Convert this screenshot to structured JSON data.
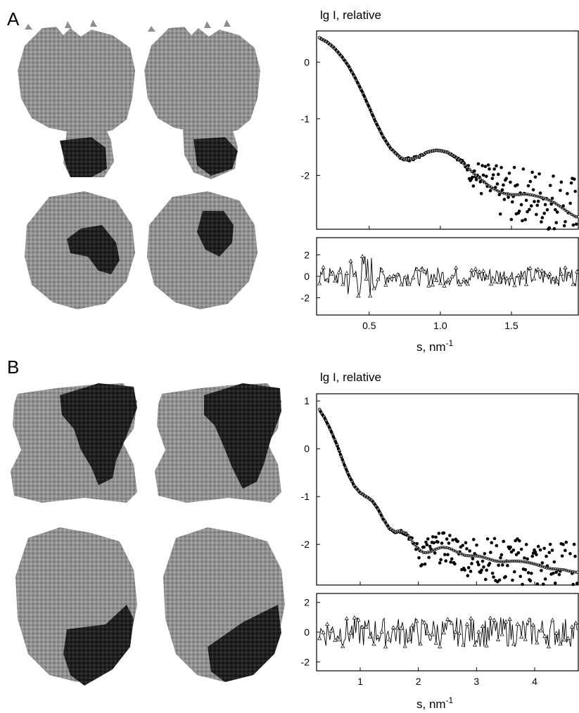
{
  "panels": [
    {
      "letter": "A",
      "ylabel": "lg I, relative",
      "xlabel": "s, nm",
      "xlabel_sup": "-1"
    },
    {
      "letter": "B",
      "ylabel": "lg I, relative",
      "xlabel": "s, nm",
      "xlabel_sup": "-1"
    }
  ],
  "colors": {
    "protein": "#8c8c8c",
    "subunit": "#1e1e1e",
    "frame": "#000000"
  },
  "chart_data": [
    {
      "type": "scatter",
      "panel": "A",
      "ylabel": "lg I, relative",
      "xlabel": "s, nm-1",
      "xlim": [
        0.13,
        1.97
      ],
      "ylim": [
        -2.95,
        0.55
      ],
      "xticks": [
        "0.5",
        "1.0",
        "1.5"
      ],
      "yticks": [
        "0",
        "-1",
        "-2"
      ],
      "grid": false,
      "series": [],
      "experimental_points": [
        [
          0.15,
          0.43
        ],
        [
          0.2,
          0.36
        ],
        [
          0.25,
          0.26
        ],
        [
          0.3,
          0.12
        ],
        [
          0.35,
          -0.05
        ],
        [
          0.4,
          -0.27
        ],
        [
          0.45,
          -0.52
        ],
        [
          0.5,
          -0.8
        ],
        [
          0.55,
          -1.08
        ],
        [
          0.6,
          -1.33
        ],
        [
          0.65,
          -1.52
        ],
        [
          0.7,
          -1.65
        ],
        [
          0.75,
          -1.72
        ],
        [
          0.8,
          -1.71
        ],
        [
          0.85,
          -1.67
        ],
        [
          0.9,
          -1.6
        ],
        [
          0.95,
          -1.56
        ],
        [
          1.0,
          -1.56
        ],
        [
          1.05,
          -1.59
        ],
        [
          1.1,
          -1.66
        ],
        [
          1.15,
          -1.76
        ],
        [
          1.2,
          -1.88
        ],
        [
          1.25,
          -2.0
        ],
        [
          1.3,
          -2.1
        ],
        [
          1.35,
          -2.2
        ],
        [
          1.4,
          -2.27
        ],
        [
          1.45,
          -2.32
        ],
        [
          1.5,
          -2.34
        ],
        [
          1.55,
          -2.34
        ],
        [
          1.6,
          -2.33
        ],
        [
          1.65,
          -2.35
        ],
        [
          1.7,
          -2.38
        ],
        [
          1.75,
          -2.42
        ],
        [
          1.8,
          -2.48
        ],
        [
          1.85,
          -2.56
        ],
        [
          1.9,
          -2.65
        ],
        [
          1.95,
          -2.73
        ]
      ],
      "residuals": {
        "ylim": [
          -3.6,
          3.6
        ],
        "yticks": [
          "2",
          "0",
          "-2"
        ],
        "xticks": [
          "0.5",
          "1.0",
          "1.5"
        ]
      }
    },
    {
      "type": "scatter",
      "panel": "B",
      "ylabel": "lg I, relative",
      "xlabel": "s, nm-1",
      "xlim": [
        0.25,
        4.75
      ],
      "ylim": [
        -2.85,
        1.15
      ],
      "xticks": [
        "1",
        "2",
        "3",
        "4"
      ],
      "yticks": [
        "1",
        "0",
        "-1",
        "-2"
      ],
      "grid": false,
      "series": [],
      "experimental_points": [
        [
          0.3,
          0.82
        ],
        [
          0.4,
          0.62
        ],
        [
          0.5,
          0.37
        ],
        [
          0.6,
          0.08
        ],
        [
          0.7,
          -0.25
        ],
        [
          0.8,
          -0.55
        ],
        [
          0.9,
          -0.78
        ],
        [
          1.0,
          -0.92
        ],
        [
          1.1,
          -1.0
        ],
        [
          1.2,
          -1.08
        ],
        [
          1.3,
          -1.25
        ],
        [
          1.4,
          -1.48
        ],
        [
          1.5,
          -1.66
        ],
        [
          1.6,
          -1.73
        ],
        [
          1.7,
          -1.72
        ],
        [
          1.8,
          -1.78
        ],
        [
          1.9,
          -1.95
        ],
        [
          2.0,
          -2.1
        ],
        [
          2.1,
          -2.18
        ],
        [
          2.2,
          -2.16
        ],
        [
          2.3,
          -2.1
        ],
        [
          2.4,
          -2.06
        ],
        [
          2.5,
          -2.07
        ],
        [
          2.6,
          -2.12
        ],
        [
          2.7,
          -2.18
        ],
        [
          2.8,
          -2.23
        ],
        [
          2.9,
          -2.24
        ],
        [
          3.0,
          -2.24
        ],
        [
          3.1,
          -2.26
        ],
        [
          3.2,
          -2.3
        ],
        [
          3.3,
          -2.34
        ],
        [
          3.4,
          -2.36
        ],
        [
          3.5,
          -2.36
        ],
        [
          3.6,
          -2.35
        ],
        [
          3.7,
          -2.35
        ],
        [
          3.8,
          -2.36
        ],
        [
          3.9,
          -2.38
        ],
        [
          4.0,
          -2.41
        ],
        [
          4.1,
          -2.45
        ],
        [
          4.2,
          -2.49
        ],
        [
          4.3,
          -2.51
        ],
        [
          4.4,
          -2.52
        ],
        [
          4.5,
          -2.53
        ],
        [
          4.6,
          -2.56
        ],
        [
          4.7,
          -2.58
        ]
      ],
      "residuals": {
        "ylim": [
          -2.6,
          2.6
        ],
        "yticks": [
          "2",
          "0",
          "-2"
        ],
        "xticks": [
          "1",
          "2",
          "3",
          "4"
        ]
      }
    }
  ]
}
